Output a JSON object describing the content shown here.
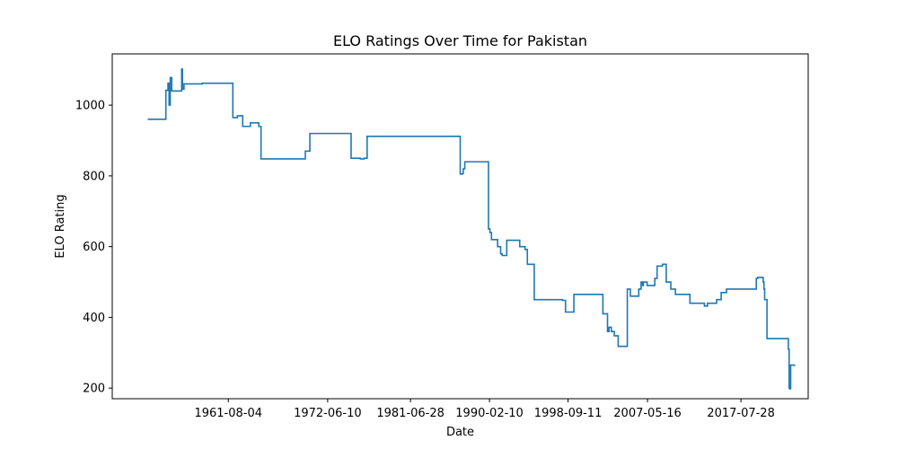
{
  "chart_data": {
    "type": "line",
    "title": "ELO Ratings Over Time for Pakistan",
    "xlabel": "Date",
    "ylabel": "ELO Rating",
    "x_tick_labels": [
      "1961-08-04",
      "1972-06-10",
      "1981-06-28",
      "1990-02-10",
      "1998-09-11",
      "2007-05-16",
      "2017-07-28"
    ],
    "y_ticks": [
      200,
      400,
      600,
      800,
      1000
    ],
    "xlim": [
      "1948-12-01",
      "2024-12-01"
    ],
    "ylim": [
      170,
      1145
    ],
    "grid": false,
    "line_color": "#1f77b4",
    "series": [
      {
        "x": [
          "1952-10-16",
          "1953-06-01",
          "1954-10-10",
          "1954-11-05",
          "1954-12-01",
          "1955-01-01",
          "1955-02-15",
          "1955-04-01",
          "1955-06-01",
          "1956-07-01",
          "1956-08-01",
          "1956-10-01",
          "1958-10-01",
          "1959-10-01",
          "1959-12-01",
          "1960-01-15",
          "1960-03-01",
          "1960-05-01",
          "1960-07-01",
          "1962-02-01",
          "1962-03-01",
          "1962-05-01",
          "1962-08-01",
          "1963-03-01",
          "1964-01-01",
          "1964-12-01",
          "1965-03-01",
          "1967-10-01",
          "1968-01-01",
          "1968-03-01",
          "1969-03-01",
          "1969-05-01",
          "1970-01-01",
          "1970-07-01",
          "1975-01-01",
          "1976-01-01",
          "1976-03-01",
          "1976-06-01",
          "1976-10-01",
          "1977-01-01",
          "1978-12-01",
          "1979-01-01",
          "1979-02-01",
          "1979-03-01",
          "1986-12-01",
          "1987-01-01",
          "1987-02-01",
          "1987-03-01",
          "1987-04-01",
          "1987-06-01",
          "1987-08-01",
          "1990-01-01",
          "1990-03-01",
          "1990-05-01",
          "1990-07-01",
          "1991-01-01",
          "1991-03-01",
          "1991-05-01",
          "1991-06-01",
          "1991-07-01",
          "1992-01-01",
          "1993-01-01",
          "1993-06-01",
          "1994-01-01",
          "1994-04-01",
          "1995-01-01",
          "1995-06-01",
          "1997-01-01",
          "1997-04-01",
          "1997-09-01",
          "1998-02-01",
          "1998-06-01",
          "1999-05-01",
          "1999-08-01",
          "2000-01-01",
          "2002-07-01",
          "2003-01-01",
          "2003-03-01",
          "2003-06-01",
          "2003-10-01",
          "2004-03-01",
          "2005-03-01",
          "2005-07-01",
          "2006-06-01",
          "2006-09-01",
          "2006-10-01",
          "2006-11-01",
          "2006-12-01",
          "2007-01-01",
          "2007-05-01",
          "2007-08-01",
          "2008-03-01",
          "2008-06-01",
          "2009-01-01",
          "2009-06-01",
          "2009-12-01",
          "2010-06-01",
          "2012-01-01",
          "2012-06-01",
          "2013-06-01",
          "2013-08-01",
          "2013-12-01",
          "2014-06-01",
          "2014-12-01",
          "2015-06-01",
          "2016-01-01",
          "2016-06-01",
          "2016-10-01",
          "2017-01-01",
          "2017-06-01",
          "2019-03-01",
          "2019-04-01",
          "2019-06-01",
          "2019-08-01",
          "2020-01-01",
          "2020-02-01",
          "2020-03-01",
          "2020-06-01",
          "2022-01-01",
          "2022-08-01",
          "2022-10-01",
          "2022-11-01",
          "2022-12-01",
          "2023-01-01",
          "2023-06-01"
        ],
        "y": [
          960,
          960,
          1042,
          1042,
          1042,
          1062,
          1000,
          1078,
          1040,
          1102,
          1045,
          1060,
          1062,
          1062,
          1062,
          1062,
          1062,
          1062,
          1062,
          965,
          965,
          965,
          970,
          940,
          950,
          940,
          848,
          848,
          848,
          848,
          848,
          848,
          870,
          920,
          850,
          848,
          848,
          850,
          912,
          912,
          912,
          912,
          912,
          912,
          806,
          805,
          806,
          806,
          820,
          840,
          840,
          650,
          640,
          620,
          620,
          600,
          600,
          580,
          580,
          575,
          618,
          618,
          600,
          592,
          550,
          450,
          450,
          450,
          450,
          450,
          448,
          415,
          465,
          465,
          465,
          410,
          360,
          372,
          360,
          348,
          318,
          480,
          460,
          480,
          500,
          500,
          490,
          500,
          500,
          490,
          490,
          510,
          545,
          550,
          500,
          480,
          465,
          440,
          440,
          440,
          432,
          440,
          440,
          450,
          470,
          480,
          480,
          480,
          480,
          480,
          480,
          510,
          513,
          513,
          500,
          480,
          450,
          340,
          340,
          340,
          310,
          200,
          198,
          265,
          262
        ]
      }
    ]
  }
}
